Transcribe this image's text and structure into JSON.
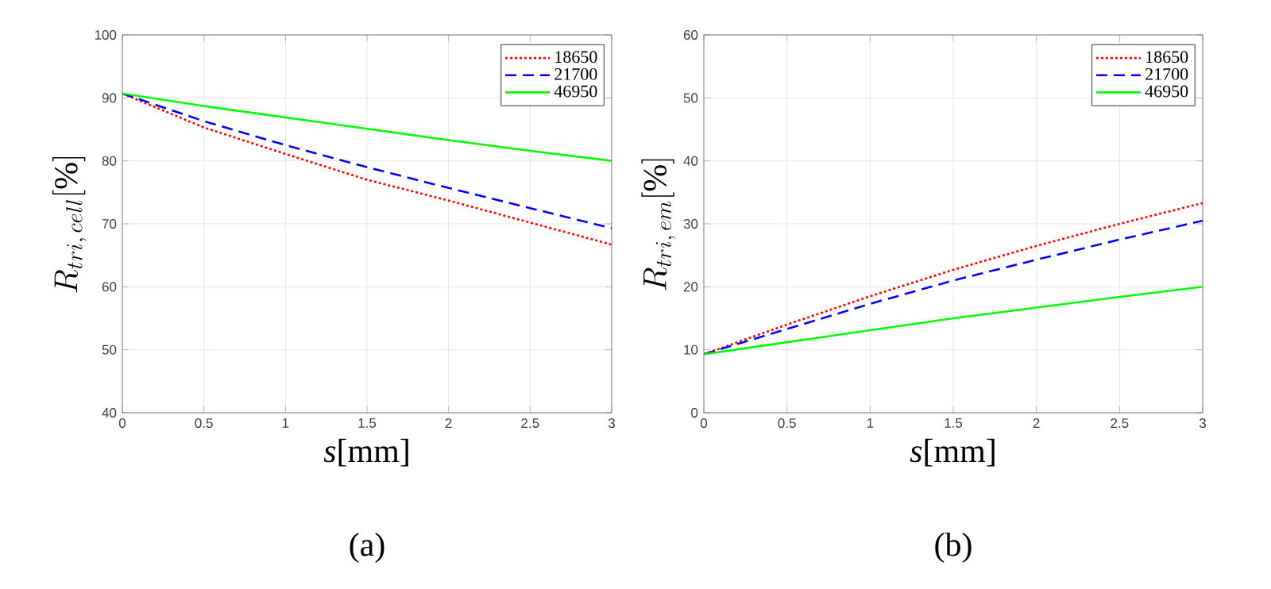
{
  "chart_data": [
    {
      "type": "line",
      "xlabel": "*s*[mm]",
      "ylabel": "R_{tri,\\, cell}[\\%]",
      "annotations": [
        "(a)"
      ],
      "x": [
        0,
        0.5,
        1,
        1.5,
        2,
        2.5,
        3
      ],
      "xlim": [
        0,
        3
      ],
      "xticks": [
        0,
        0.5,
        1,
        1.5,
        2,
        2.5,
        3
      ],
      "ylim": [
        40,
        100
      ],
      "yticks": [
        40,
        50,
        60,
        70,
        80,
        90,
        100
      ],
      "grid": true,
      "legend": "top right",
      "series": [
        {
          "name": "18650",
          "color": "#ff0000",
          "line_style": "dotted",
          "values": [
            90.7,
            85.3,
            81.1,
            77,
            73.7,
            70.2,
            66.7
          ]
        },
        {
          "name": "21700",
          "color": "#0000ff",
          "line_style": "dashed",
          "values": [
            90.7,
            86.3,
            82.5,
            79,
            75.7,
            72.5,
            69.3
          ]
        },
        {
          "name": "46950",
          "color": "#00ff00",
          "line_style": "solid",
          "values": [
            90.7,
            88.7,
            86.9,
            85.1,
            83.3,
            81.6,
            80
          ]
        }
      ]
    },
    {
      "type": "line",
      "xlabel": "*s*[mm]",
      "ylabel": "R_{tri,\\, em}[\\%]",
      "annotations": [
        "(b)"
      ],
      "x": [
        0,
        0.5,
        1,
        1.5,
        2,
        2.5,
        3
      ],
      "xlim": [
        0,
        3
      ],
      "xticks": [
        0,
        0.5,
        1,
        1.5,
        2,
        2.5,
        3
      ],
      "ylim": [
        0,
        60
      ],
      "yticks": [
        0,
        10,
        20,
        30,
        40,
        50,
        60
      ],
      "grid": true,
      "legend": "top right",
      "series": [
        {
          "name": "18650",
          "color": "#ff0000",
          "line_style": "dotted",
          "values": [
            9.3,
            14,
            18.5,
            22.7,
            26.5,
            30,
            33.3
          ]
        },
        {
          "name": "21700",
          "color": "#0000ff",
          "line_style": "dashed",
          "values": [
            9.3,
            13.3,
            17.3,
            21,
            24.3,
            27.5,
            30.5
          ]
        },
        {
          "name": "46950",
          "color": "#00ff00",
          "line_style": "solid",
          "values": [
            9.3,
            11.2,
            13.1,
            15,
            16.7,
            18.4,
            20
          ]
        }
      ]
    }
  ]
}
